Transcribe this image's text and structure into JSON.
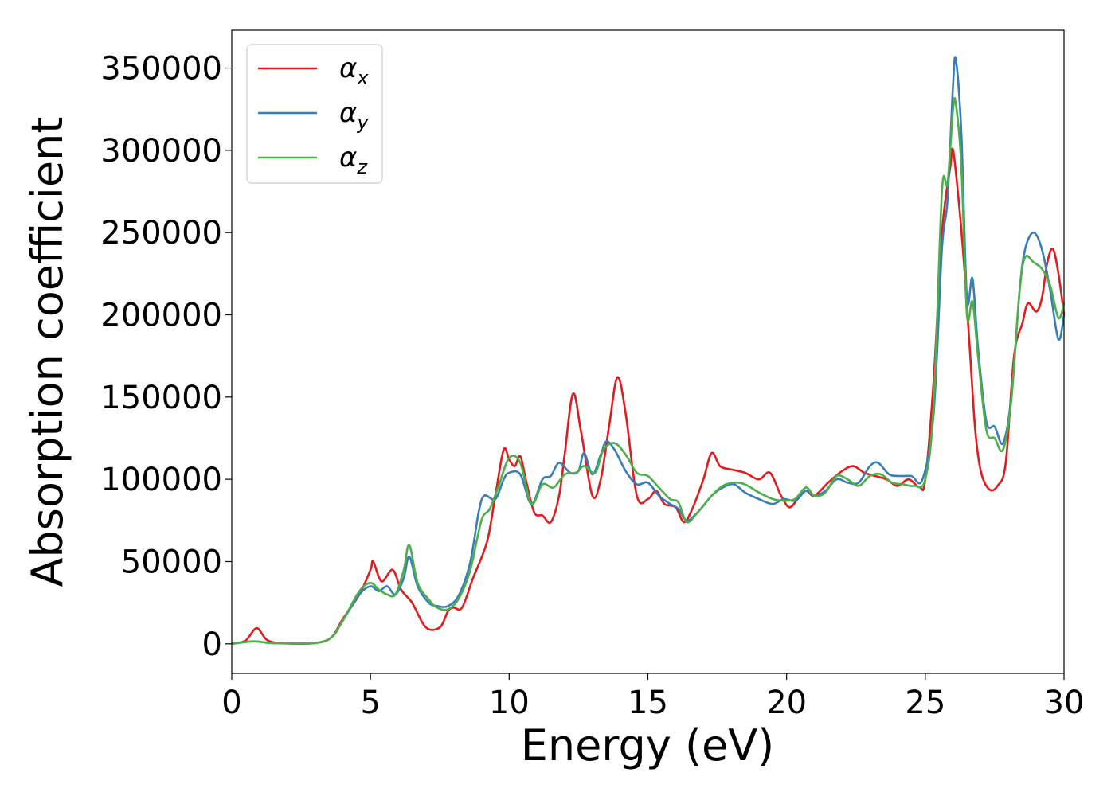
{
  "chart_data": {
    "type": "line",
    "title": "",
    "xlabel": "Energy (eV)",
    "ylabel": "Absorption coefficient",
    "xlim": [
      0,
      30
    ],
    "ylim": [
      -18000,
      373000
    ],
    "xticks": [
      0,
      5,
      10,
      15,
      20,
      25,
      30
    ],
    "yticks": [
      0,
      50000,
      100000,
      150000,
      200000,
      250000,
      300000,
      350000
    ],
    "grid": false,
    "legend": "top-left",
    "series": [
      {
        "name": "α",
        "subscript": "x",
        "color": "#e41a1c",
        "points": [
          [
            0,
            0
          ],
          [
            0.5,
            2000
          ],
          [
            0.9,
            9500
          ],
          [
            1.3,
            2000
          ],
          [
            2,
            300
          ],
          [
            3,
            500
          ],
          [
            3.6,
            4000
          ],
          [
            4,
            15000
          ],
          [
            4.6,
            30000
          ],
          [
            5,
            45000
          ],
          [
            5.1,
            50000
          ],
          [
            5.4,
            38000
          ],
          [
            5.8,
            45000
          ],
          [
            6.1,
            33000
          ],
          [
            6.5,
            25000
          ],
          [
            7,
            10000
          ],
          [
            7.5,
            10000
          ],
          [
            7.8,
            20000
          ],
          [
            8,
            22000
          ],
          [
            8.3,
            22000
          ],
          [
            8.7,
            40000
          ],
          [
            9.2,
            62000
          ],
          [
            9.5,
            90000
          ],
          [
            9.8,
            118000
          ],
          [
            10,
            112000
          ],
          [
            10.2,
            108000
          ],
          [
            10.4,
            114000
          ],
          [
            10.6,
            100000
          ],
          [
            10.9,
            80000
          ],
          [
            11.2,
            78000
          ],
          [
            11.5,
            74000
          ],
          [
            11.8,
            90000
          ],
          [
            12,
            115000
          ],
          [
            12.3,
            152000
          ],
          [
            12.6,
            128000
          ],
          [
            13,
            90000
          ],
          [
            13.3,
            100000
          ],
          [
            13.6,
            132000
          ],
          [
            13.9,
            162000
          ],
          [
            14.2,
            140000
          ],
          [
            14.6,
            90000
          ],
          [
            15,
            88000
          ],
          [
            15.3,
            93000
          ],
          [
            15.6,
            85000
          ],
          [
            16,
            83000
          ],
          [
            16.3,
            74000
          ],
          [
            16.6,
            82000
          ],
          [
            17,
            100000
          ],
          [
            17.3,
            116000
          ],
          [
            17.6,
            108000
          ],
          [
            18,
            106000
          ],
          [
            18.5,
            104000
          ],
          [
            19,
            100000
          ],
          [
            19.4,
            104000
          ],
          [
            19.8,
            90000
          ],
          [
            20.1,
            83000
          ],
          [
            20.4,
            88000
          ],
          [
            20.7,
            93000
          ],
          [
            21,
            90000
          ],
          [
            21.5,
            98000
          ],
          [
            22,
            105000
          ],
          [
            22.4,
            108000
          ],
          [
            22.8,
            104000
          ],
          [
            23.2,
            102000
          ],
          [
            23.6,
            100000
          ],
          [
            24,
            96000
          ],
          [
            24.4,
            100000
          ],
          [
            24.8,
            95000
          ],
          [
            25,
            100000
          ],
          [
            25.3,
            160000
          ],
          [
            25.6,
            250000
          ],
          [
            25.9,
            290000
          ],
          [
            26,
            300000
          ],
          [
            26.2,
            270000
          ],
          [
            26.4,
            230000
          ],
          [
            26.6,
            180000
          ],
          [
            26.8,
            130000
          ],
          [
            27,
            105000
          ],
          [
            27.3,
            94000
          ],
          [
            27.6,
            96000
          ],
          [
            27.9,
            110000
          ],
          [
            28.2,
            175000
          ],
          [
            28.5,
            195000
          ],
          [
            28.7,
            207000
          ],
          [
            29,
            202000
          ],
          [
            29.2,
            210000
          ],
          [
            29.4,
            232000
          ],
          [
            29.6,
            240000
          ],
          [
            29.8,
            225000
          ],
          [
            30,
            200000
          ]
        ]
      },
      {
        "name": "α",
        "subscript": "y",
        "color": "#377eb8",
        "points": [
          [
            0,
            0
          ],
          [
            0.8,
            1500
          ],
          [
            1.5,
            400
          ],
          [
            3,
            500
          ],
          [
            3.6,
            4000
          ],
          [
            4,
            14000
          ],
          [
            4.6,
            30000
          ],
          [
            5,
            35000
          ],
          [
            5.3,
            32000
          ],
          [
            5.6,
            35000
          ],
          [
            5.9,
            30000
          ],
          [
            6.2,
            40000
          ],
          [
            6.4,
            53000
          ],
          [
            6.7,
            35000
          ],
          [
            7.1,
            25000
          ],
          [
            7.4,
            23000
          ],
          [
            7.8,
            23000
          ],
          [
            8.2,
            30000
          ],
          [
            8.6,
            50000
          ],
          [
            8.9,
            80000
          ],
          [
            9.1,
            90000
          ],
          [
            9.5,
            88000
          ],
          [
            9.8,
            100000
          ],
          [
            10,
            104000
          ],
          [
            10.4,
            103000
          ],
          [
            10.8,
            85000
          ],
          [
            11.2,
            100000
          ],
          [
            11.5,
            102000
          ],
          [
            11.8,
            110000
          ],
          [
            12.2,
            104000
          ],
          [
            12.5,
            105000
          ],
          [
            12.7,
            116000
          ],
          [
            13,
            103000
          ],
          [
            13.3,
            115000
          ],
          [
            13.5,
            123000
          ],
          [
            13.8,
            118000
          ],
          [
            14.2,
            105000
          ],
          [
            14.6,
            97000
          ],
          [
            15,
            98000
          ],
          [
            15.4,
            90000
          ],
          [
            15.8,
            85000
          ],
          [
            16.1,
            82000
          ],
          [
            16.4,
            75000
          ],
          [
            16.8,
            80000
          ],
          [
            17.3,
            90000
          ],
          [
            17.7,
            95000
          ],
          [
            18.1,
            97000
          ],
          [
            18.5,
            92000
          ],
          [
            19,
            88000
          ],
          [
            19.5,
            85000
          ],
          [
            19.9,
            88000
          ],
          [
            20.3,
            87000
          ],
          [
            20.7,
            93000
          ],
          [
            21,
            90000
          ],
          [
            21.4,
            93000
          ],
          [
            21.8,
            100000
          ],
          [
            22.2,
            98000
          ],
          [
            22.6,
            98000
          ],
          [
            23,
            108000
          ],
          [
            23.3,
            110000
          ],
          [
            23.7,
            103000
          ],
          [
            24.1,
            102000
          ],
          [
            24.5,
            102000
          ],
          [
            24.9,
            100000
          ],
          [
            25.3,
            140000
          ],
          [
            25.6,
            240000
          ],
          [
            25.8,
            270000
          ],
          [
            26,
            340000
          ],
          [
            26.1,
            355000
          ],
          [
            26.3,
            310000
          ],
          [
            26.5,
            210000
          ],
          [
            26.7,
            222000
          ],
          [
            26.9,
            180000
          ],
          [
            27.2,
            135000
          ],
          [
            27.5,
            132000
          ],
          [
            27.8,
            122000
          ],
          [
            28.1,
            150000
          ],
          [
            28.4,
            215000
          ],
          [
            28.6,
            240000
          ],
          [
            28.9,
            250000
          ],
          [
            29.2,
            240000
          ],
          [
            29.5,
            215000
          ],
          [
            29.8,
            185000
          ],
          [
            30,
            200000
          ]
        ]
      },
      {
        "name": "α",
        "subscript": "z",
        "color": "#4daf4a",
        "points": [
          [
            0,
            0
          ],
          [
            0.8,
            1500
          ],
          [
            1.5,
            400
          ],
          [
            3,
            500
          ],
          [
            3.6,
            4000
          ],
          [
            4,
            14000
          ],
          [
            4.6,
            32000
          ],
          [
            5,
            37000
          ],
          [
            5.3,
            33000
          ],
          [
            5.6,
            30000
          ],
          [
            5.9,
            30000
          ],
          [
            6.2,
            45000
          ],
          [
            6.4,
            60000
          ],
          [
            6.7,
            37000
          ],
          [
            7.1,
            27000
          ],
          [
            7.4,
            22000
          ],
          [
            7.8,
            21000
          ],
          [
            8.2,
            28000
          ],
          [
            8.6,
            45000
          ],
          [
            9,
            75000
          ],
          [
            9.3,
            82000
          ],
          [
            9.6,
            95000
          ],
          [
            10,
            113000
          ],
          [
            10.4,
            110000
          ],
          [
            10.8,
            85000
          ],
          [
            11.2,
            97000
          ],
          [
            11.6,
            95000
          ],
          [
            12,
            103000
          ],
          [
            12.4,
            104000
          ],
          [
            12.7,
            108000
          ],
          [
            13.1,
            104000
          ],
          [
            13.4,
            118000
          ],
          [
            13.8,
            122000
          ],
          [
            14.2,
            115000
          ],
          [
            14.6,
            104000
          ],
          [
            15,
            102000
          ],
          [
            15.4,
            95000
          ],
          [
            15.8,
            88000
          ],
          [
            16.1,
            86000
          ],
          [
            16.4,
            74000
          ],
          [
            16.8,
            80000
          ],
          [
            17.3,
            90000
          ],
          [
            17.7,
            96000
          ],
          [
            18.1,
            98000
          ],
          [
            18.5,
            97000
          ],
          [
            19,
            92000
          ],
          [
            19.5,
            88000
          ],
          [
            19.9,
            87000
          ],
          [
            20.3,
            88000
          ],
          [
            20.7,
            95000
          ],
          [
            21,
            90000
          ],
          [
            21.4,
            92000
          ],
          [
            21.8,
            102000
          ],
          [
            22.2,
            100000
          ],
          [
            22.6,
            96000
          ],
          [
            23,
            102000
          ],
          [
            23.4,
            103000
          ],
          [
            23.8,
            98000
          ],
          [
            24.2,
            97000
          ],
          [
            24.6,
            96000
          ],
          [
            25,
            100000
          ],
          [
            25.3,
            145000
          ],
          [
            25.6,
            275000
          ],
          [
            25.8,
            280000
          ],
          [
            26,
            325000
          ],
          [
            26.1,
            328000
          ],
          [
            26.3,
            290000
          ],
          [
            26.5,
            200000
          ],
          [
            26.7,
            208000
          ],
          [
            26.9,
            175000
          ],
          [
            27.2,
            130000
          ],
          [
            27.5,
            125000
          ],
          [
            27.8,
            118000
          ],
          [
            28.1,
            148000
          ],
          [
            28.4,
            215000
          ],
          [
            28.6,
            235000
          ],
          [
            28.9,
            232000
          ],
          [
            29.2,
            228000
          ],
          [
            29.5,
            218000
          ],
          [
            29.8,
            198000
          ],
          [
            30,
            207000
          ]
        ]
      }
    ]
  }
}
